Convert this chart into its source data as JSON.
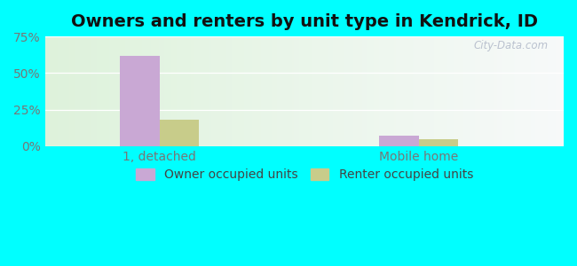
{
  "title": "Owners and renters by unit type in Kendrick, ID",
  "categories": [
    "1, detached",
    "Mobile home"
  ],
  "owner_values": [
    62,
    7
  ],
  "renter_values": [
    18,
    5
  ],
  "owner_color": "#c9a8d4",
  "renter_color": "#c8cc8a",
  "ylim": [
    0,
    75
  ],
  "yticks": [
    0,
    25,
    50,
    75
  ],
  "ytick_labels": [
    "0%",
    "25%",
    "50%",
    "75%"
  ],
  "bar_width": 0.38,
  "group_positions": [
    1.1,
    3.6
  ],
  "xlim": [
    0,
    5.0
  ],
  "title_fontsize": 14,
  "tick_fontsize": 10,
  "legend_fontsize": 10,
  "watermark_text": "City-Data.com",
  "owner_label": "Owner occupied units",
  "renter_label": "Renter occupied units",
  "fig_bg": "#00ffff",
  "grid_color": "#ffffff",
  "tick_color": "#777777"
}
